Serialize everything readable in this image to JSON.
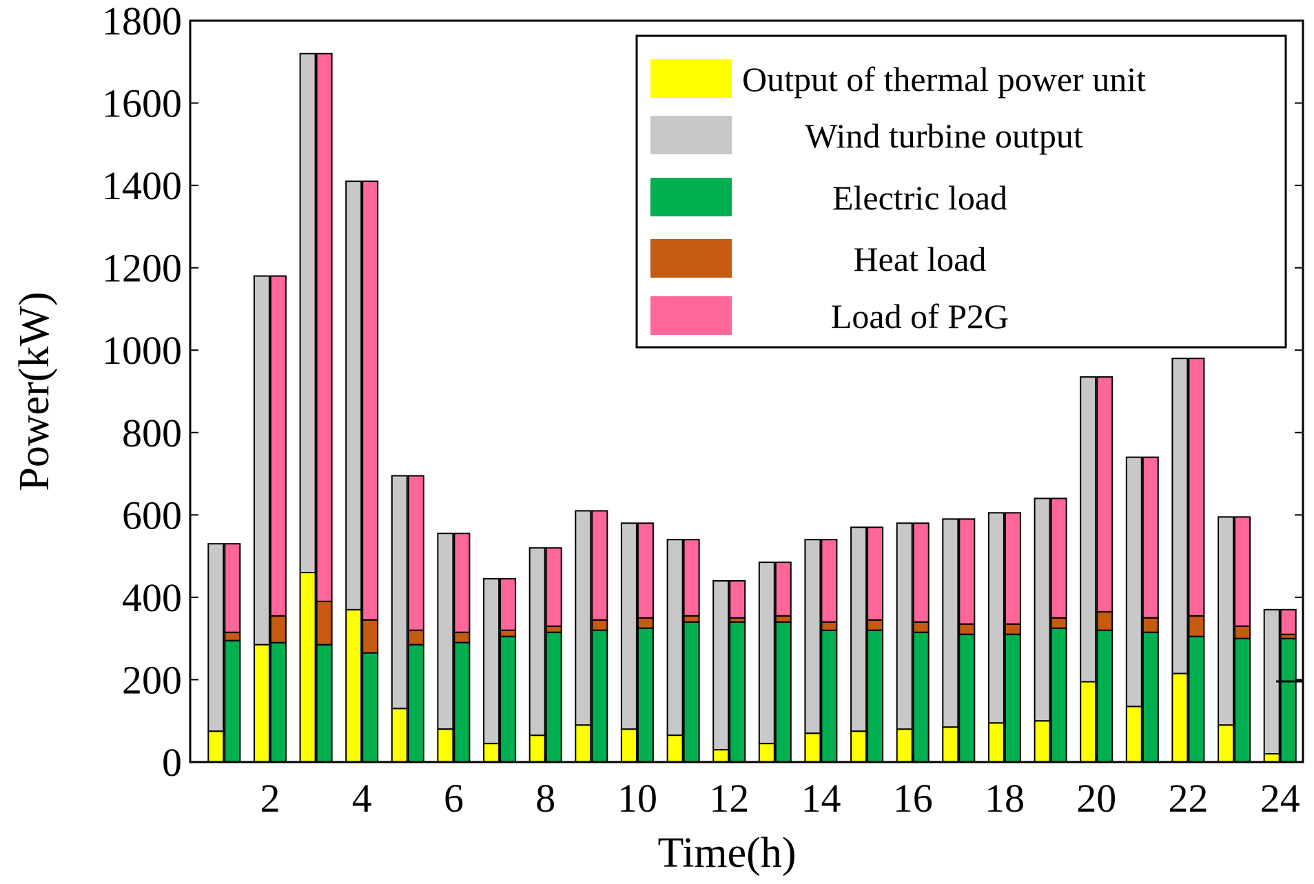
{
  "chart_data": {
    "type": "bar",
    "stacking": "stacked",
    "xlabel": "Time(h)",
    "ylabel": "Power(kW)",
    "ylim": [
      0,
      1800
    ],
    "yticks": [
      0,
      200,
      400,
      600,
      800,
      1000,
      1200,
      1400,
      1600,
      1800
    ],
    "xtick_labels": [
      "2",
      "4",
      "6",
      "8",
      "10",
      "12",
      "14",
      "16",
      "18",
      "20",
      "22",
      "24"
    ],
    "xticks": [
      2,
      4,
      6,
      8,
      10,
      12,
      14,
      16,
      18,
      20,
      22,
      24
    ],
    "hours": [
      1,
      2,
      3,
      4,
      5,
      6,
      7,
      8,
      9,
      10,
      11,
      12,
      13,
      14,
      15,
      16,
      17,
      18,
      19,
      20,
      21,
      22,
      23,
      24
    ],
    "legend_position": "top-right",
    "series": [
      {
        "name": "Output of thermal power unit",
        "stack": "supply",
        "color": "#ffff00",
        "values": [
          75,
          285,
          460,
          370,
          130,
          80,
          45,
          65,
          90,
          80,
          65,
          30,
          45,
          70,
          75,
          80,
          85,
          95,
          100,
          195,
          135,
          215,
          90,
          20
        ]
      },
      {
        "name": "Wind turbine output",
        "stack": "supply",
        "color": "#c8c8c8",
        "values": [
          455,
          895,
          1260,
          1040,
          565,
          475,
          400,
          455,
          520,
          500,
          475,
          410,
          440,
          470,
          495,
          500,
          505,
          510,
          540,
          740,
          605,
          765,
          505,
          350
        ]
      },
      {
        "name": "Electric load",
        "stack": "demand",
        "color": "#00b050",
        "values": [
          295,
          290,
          285,
          265,
          285,
          290,
          305,
          315,
          320,
          325,
          340,
          340,
          340,
          320,
          320,
          315,
          310,
          310,
          325,
          320,
          315,
          305,
          300,
          300
        ]
      },
      {
        "name": "Heat load",
        "stack": "demand",
        "color": "#c55a11",
        "values": [
          20,
          65,
          105,
          80,
          35,
          25,
          15,
          15,
          25,
          25,
          15,
          10,
          15,
          20,
          25,
          25,
          25,
          25,
          25,
          45,
          35,
          50,
          30,
          10
        ]
      },
      {
        "name": "Load of P2G",
        "stack": "demand",
        "color": "#ff6699",
        "values": [
          215,
          825,
          1330,
          1065,
          375,
          240,
          125,
          190,
          265,
          230,
          185,
          90,
          130,
          200,
          225,
          240,
          255,
          270,
          290,
          570,
          390,
          625,
          265,
          60
        ]
      }
    ]
  }
}
